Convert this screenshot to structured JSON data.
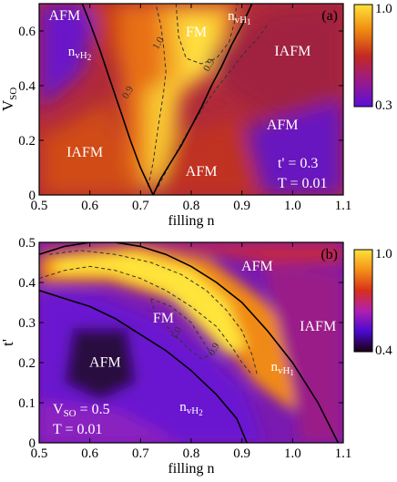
{
  "chart_data": [
    {
      "type": "heatmap",
      "panel_label": "(a)",
      "xlabel": "filling n",
      "ylabel": "V",
      "ylabel_sub": "SO",
      "xlim": [
        0.5,
        1.1
      ],
      "ylim": [
        0,
        0.7
      ],
      "xticks": [
        "0.5",
        "0.6",
        "0.7",
        "0.8",
        "0.9",
        "1.0",
        "1.1"
      ],
      "yticks": [
        "0",
        "0.2",
        "0.4",
        "0.6"
      ],
      "colorbar": {
        "min": 0.3,
        "max": 1.0,
        "min_label": "0.3",
        "max_label": "1.0"
      },
      "regions": [
        {
          "label": "AFM",
          "n": 0.55,
          "v": 0.64
        },
        {
          "label": "FM",
          "n": 0.81,
          "v": 0.58
        },
        {
          "label": "IAFM",
          "n": 1.0,
          "v": 0.51
        },
        {
          "label": "AFM",
          "n": 0.98,
          "v": 0.24
        },
        {
          "label": "IAFM",
          "n": 0.59,
          "v": 0.14
        },
        {
          "label": "AFM",
          "n": 0.82,
          "v": 0.07
        }
      ],
      "vh_labels": [
        {
          "main": "n",
          "sub": "vH",
          "subsub": "2",
          "n": 0.58,
          "v": 0.51
        },
        {
          "main": "n",
          "sub": "vH",
          "subsub": "1",
          "n": 0.895,
          "v": 0.64
        }
      ],
      "contour_labels": [
        {
          "text": "1.0",
          "n": 0.74,
          "v": 0.55
        },
        {
          "text": "0.9",
          "n": 0.68,
          "v": 0.37
        },
        {
          "text": "0.9",
          "n": 0.84,
          "v": 0.47
        }
      ],
      "params": [
        "t' = 0.3",
        "T = 0.01"
      ],
      "vh2_curve": [
        [
          0.585,
          0.7
        ],
        [
          0.6,
          0.63
        ],
        [
          0.62,
          0.53
        ],
        [
          0.64,
          0.42
        ],
        [
          0.66,
          0.31
        ],
        [
          0.68,
          0.2
        ],
        [
          0.7,
          0.1
        ],
        [
          0.715,
          0.04
        ],
        [
          0.725,
          0.0
        ]
      ],
      "vh1_curve": [
        [
          0.725,
          0.0
        ],
        [
          0.74,
          0.06
        ],
        [
          0.76,
          0.12
        ],
        [
          0.78,
          0.18
        ],
        [
          0.8,
          0.25
        ],
        [
          0.82,
          0.32
        ],
        [
          0.84,
          0.4
        ],
        [
          0.86,
          0.47
        ],
        [
          0.88,
          0.55
        ],
        [
          0.9,
          0.62
        ],
        [
          0.92,
          0.7
        ]
      ],
      "contour_outer": [
        [
          0.715,
          0.03
        ],
        [
          0.725,
          0.12
        ],
        [
          0.735,
          0.25
        ],
        [
          0.745,
          0.37
        ],
        [
          0.75,
          0.45
        ],
        [
          0.745,
          0.55
        ],
        [
          0.74,
          0.62
        ],
        [
          0.73,
          0.7
        ]
      ],
      "contour_outer2": [
        [
          0.735,
          0.03
        ],
        [
          0.76,
          0.12
        ],
        [
          0.79,
          0.22
        ],
        [
          0.82,
          0.31
        ],
        [
          0.85,
          0.39
        ],
        [
          0.88,
          0.46
        ],
        [
          0.9,
          0.51
        ],
        [
          0.93,
          0.57
        ],
        [
          0.95,
          0.62
        ]
      ],
      "contour_inner": [
        [
          0.77,
          0.7
        ],
        [
          0.775,
          0.58
        ],
        [
          0.79,
          0.5
        ],
        [
          0.82,
          0.48
        ],
        [
          0.85,
          0.5
        ],
        [
          0.875,
          0.56
        ],
        [
          0.885,
          0.63
        ],
        [
          0.89,
          0.7
        ]
      ]
    },
    {
      "type": "heatmap",
      "panel_label": "(b)",
      "xlabel": "filling n",
      "ylabel": "t'",
      "xlim": [
        0.5,
        1.1
      ],
      "ylim": [
        0,
        0.5
      ],
      "xticks": [
        "0.5",
        "0.6",
        "0.7",
        "0.8",
        "0.9",
        "1.0",
        "1.1"
      ],
      "yticks": [
        "0",
        "0.1",
        "0.2",
        "0.3",
        "0.4",
        "0.5"
      ],
      "colorbar": {
        "min": 0.4,
        "max": 1.0,
        "min_label": "0.4",
        "max_label": "1.0"
      },
      "regions": [
        {
          "label": "AFM",
          "n": 0.93,
          "v": 0.43
        },
        {
          "label": "FM",
          "n": 0.745,
          "v": 0.3
        },
        {
          "label": "IAFM",
          "n": 1.05,
          "v": 0.28
        },
        {
          "label": "AFM",
          "n": 0.63,
          "v": 0.19
        }
      ],
      "vh_labels": [
        {
          "main": "n",
          "sub": "vH",
          "subsub": "1",
          "n": 0.98,
          "v": 0.18
        },
        {
          "main": "n",
          "sub": "vH",
          "subsub": "2",
          "n": 0.8,
          "v": 0.08
        }
      ],
      "contour_labels": [
        {
          "text": "1.0",
          "n": 0.775,
          "v": 0.27
        },
        {
          "text": "0.9",
          "n": 0.85,
          "v": 0.23
        }
      ],
      "params": [
        "V_SO = 0.5",
        "T = 0.01"
      ],
      "vh1_curve": [
        [
          0.5,
          0.47
        ],
        [
          0.55,
          0.49
        ],
        [
          0.6,
          0.5
        ],
        [
          0.65,
          0.5
        ],
        [
          0.7,
          0.49
        ],
        [
          0.75,
          0.47
        ],
        [
          0.8,
          0.44
        ],
        [
          0.85,
          0.4
        ],
        [
          0.9,
          0.35
        ],
        [
          0.95,
          0.28
        ],
        [
          1.0,
          0.2
        ],
        [
          1.05,
          0.1
        ],
        [
          1.09,
          0.0
        ]
      ],
      "vh2_curve": [
        [
          0.5,
          0.38
        ],
        [
          0.55,
          0.36
        ],
        [
          0.6,
          0.34
        ],
        [
          0.65,
          0.31
        ],
        [
          0.7,
          0.27
        ],
        [
          0.75,
          0.23
        ],
        [
          0.8,
          0.18
        ],
        [
          0.85,
          0.12
        ],
        [
          0.89,
          0.06
        ],
        [
          0.91,
          0.0
        ]
      ],
      "contour_outer": [
        [
          0.5,
          0.41
        ],
        [
          0.55,
          0.43
        ],
        [
          0.6,
          0.44
        ],
        [
          0.65,
          0.43
        ],
        [
          0.7,
          0.41
        ],
        [
          0.75,
          0.38
        ],
        [
          0.8,
          0.34
        ],
        [
          0.85,
          0.29
        ],
        [
          0.88,
          0.24
        ],
        [
          0.9,
          0.2
        ],
        [
          0.92,
          0.17
        ]
      ],
      "contour_outer2": [
        [
          0.52,
          0.47
        ],
        [
          0.58,
          0.48
        ],
        [
          0.65,
          0.47
        ],
        [
          0.72,
          0.45
        ],
        [
          0.78,
          0.42
        ],
        [
          0.83,
          0.38
        ],
        [
          0.87,
          0.33
        ],
        [
          0.9,
          0.28
        ],
        [
          0.92,
          0.22
        ],
        [
          0.93,
          0.17
        ]
      ],
      "contour_inner": [
        [
          0.72,
          0.36
        ],
        [
          0.76,
          0.34
        ],
        [
          0.8,
          0.3
        ],
        [
          0.82,
          0.26
        ],
        [
          0.84,
          0.22
        ],
        [
          0.82,
          0.21
        ],
        [
          0.79,
          0.24
        ],
        [
          0.76,
          0.28
        ],
        [
          0.73,
          0.32
        ],
        [
          0.72,
          0.36
        ]
      ]
    }
  ]
}
